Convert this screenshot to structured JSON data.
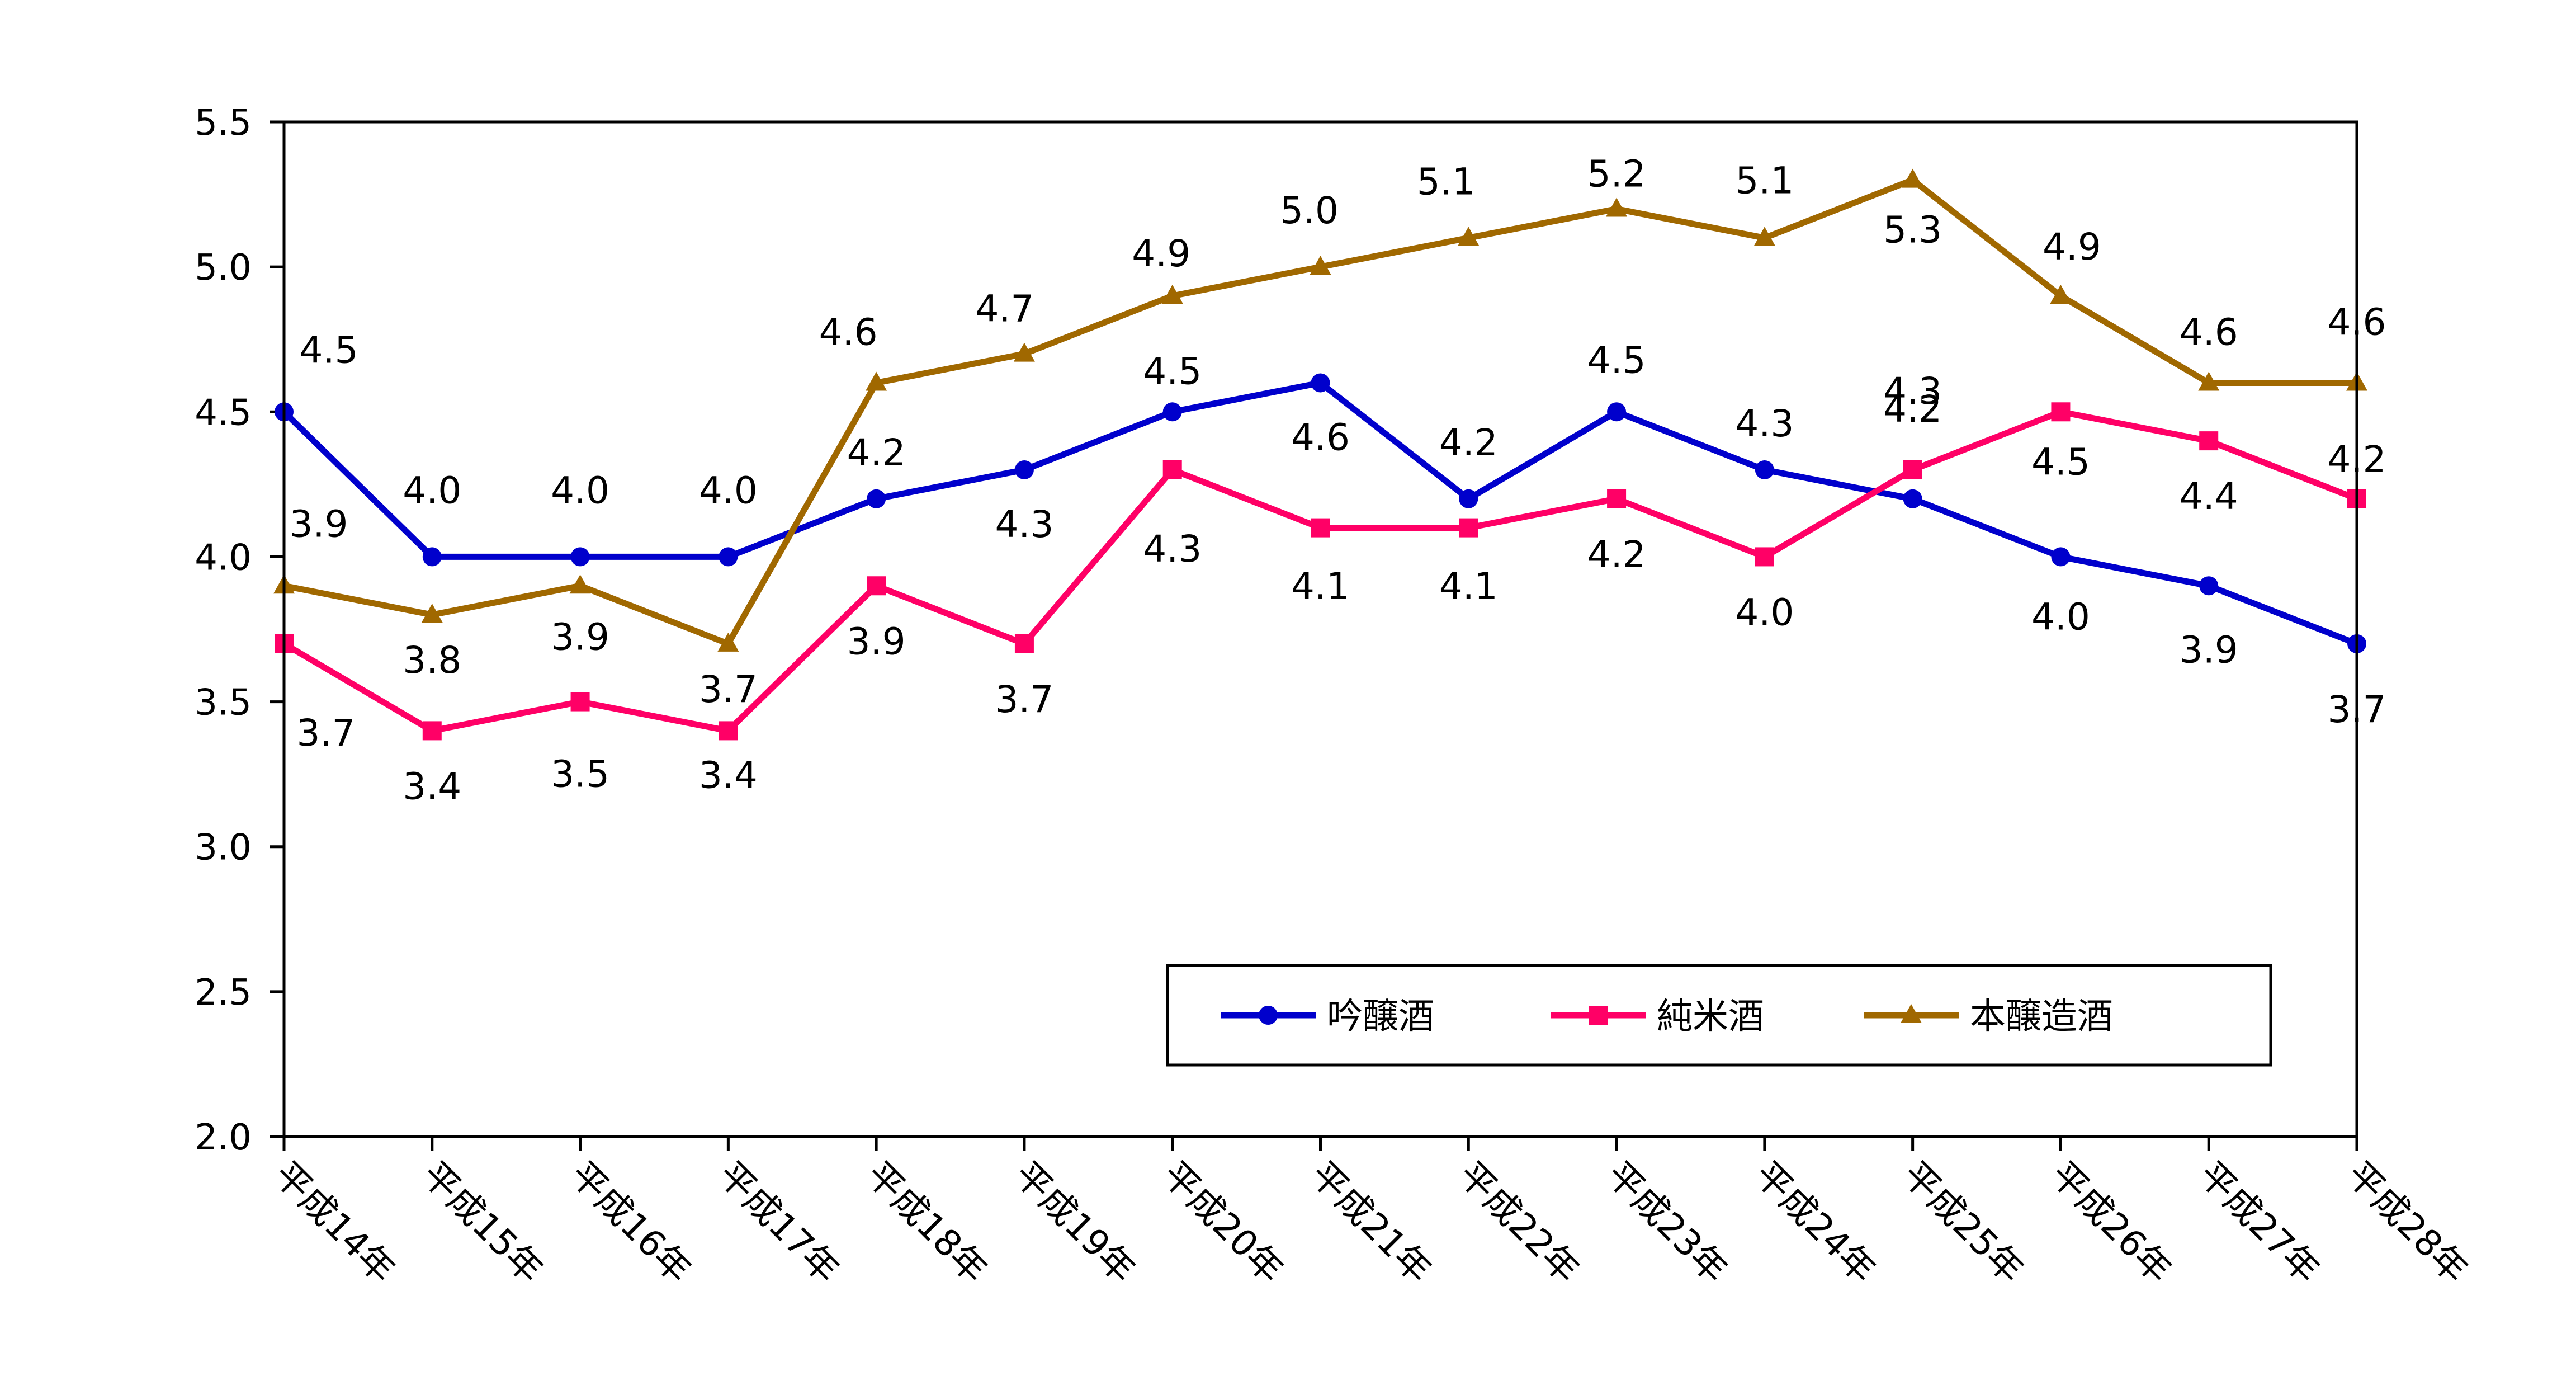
{
  "chart_data": {
    "type": "line",
    "categories": [
      "平成14年",
      "平成15年",
      "平成16年",
      "平成17年",
      "平成18年",
      "平成19年",
      "平成20年",
      "平成21年",
      "平成22年",
      "平成23年",
      "平成24年",
      "平成25年",
      "平成26年",
      "平成27年",
      "平成28年"
    ],
    "ylim": [
      2.0,
      5.5
    ],
    "yticks": [
      "2.0",
      "2.5",
      "3.0",
      "3.5",
      "4.0",
      "4.5",
      "5.0",
      "5.5"
    ],
    "grid": false,
    "legend_position": "bottom-right inside",
    "series": [
      {
        "name": "吟醸酒",
        "color": "#0000cc",
        "marker": "circle",
        "values": [
          4.5,
          4.0,
          4.0,
          4.0,
          4.2,
          4.3,
          4.5,
          4.6,
          4.2,
          4.5,
          4.3,
          4.2,
          4.0,
          3.9,
          3.7
        ],
        "labels": [
          "4.5",
          "4.0",
          "4.0",
          "4.0",
          "4.2",
          "4.3",
          "4.5",
          "4.6",
          "4.2",
          "4.5",
          "4.3",
          "4.2",
          "4.0",
          "3.9",
          "3.7"
        ]
      },
      {
        "name": "純米酒",
        "color": "#ff0066",
        "marker": "square",
        "values": [
          3.7,
          3.4,
          3.5,
          3.4,
          3.9,
          3.7,
          4.3,
          4.1,
          4.1,
          4.2,
          4.0,
          4.3,
          4.5,
          4.4,
          4.2
        ],
        "labels": [
          "3.7",
          "3.4",
          "3.5",
          "3.4",
          "3.9",
          "3.7",
          "4.3",
          "4.1",
          "4.1",
          "4.2",
          "4.0",
          "4.3",
          "4.5",
          "4.4",
          "4.2"
        ]
      },
      {
        "name": "本醸造酒",
        "color": "#a06800",
        "marker": "triangle",
        "values": [
          3.9,
          3.8,
          3.9,
          3.7,
          4.6,
          4.7,
          4.9,
          5.0,
          5.1,
          5.2,
          5.1,
          5.3,
          4.9,
          4.6,
          4.6
        ],
        "labels": [
          "3.9",
          "3.8",
          "3.9",
          "3.7",
          "4.6",
          "4.7",
          "4.9",
          "5.0",
          "5.1",
          "5.2",
          "5.1",
          "5.3",
          "4.9",
          "4.6",
          "4.6"
        ]
      }
    ]
  }
}
